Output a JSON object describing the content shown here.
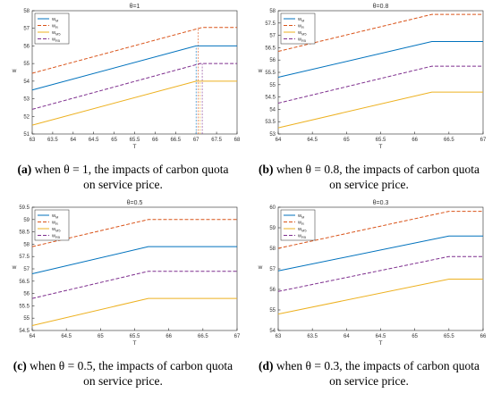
{
  "chart_data": [
    {
      "type": "line",
      "title": "θ=1",
      "xlabel": "T",
      "ylabel": "w",
      "xlim": [
        63,
        68
      ],
      "ylim": [
        51,
        58
      ],
      "xticks": [
        "63",
        "63.5",
        "64",
        "64.5",
        "65",
        "65.5",
        "66",
        "66.5",
        "67",
        "67.5",
        "68"
      ],
      "yticks": [
        "51",
        "52",
        "53",
        "54",
        "55",
        "56",
        "57",
        "58"
      ],
      "legend": [
        "w_M",
        "w_R",
        "w_M5",
        "w_R5"
      ],
      "legend_position": "top-left",
      "series": [
        {
          "name": "w_M",
          "x": [
            63,
            67,
            68
          ],
          "y": [
            53.5,
            56.0,
            56.0
          ]
        },
        {
          "name": "w_R",
          "x": [
            63,
            67.15,
            68
          ],
          "y": [
            54.45,
            57.05,
            57.05
          ]
        },
        {
          "name": "w_M5",
          "x": [
            63,
            67,
            68
          ],
          "y": [
            51.5,
            54.0,
            54.0
          ]
        },
        {
          "name": "w_R5",
          "x": [
            63,
            67.1,
            68
          ],
          "y": [
            52.4,
            55.0,
            55.0
          ]
        }
      ],
      "caption": {
        "tag": "(a)",
        "theta_text": "when θ = 1, the impacts of carbon quota",
        "line2": "on service price."
      }
    },
    {
      "type": "line",
      "title": "θ=0.8",
      "xlabel": "T",
      "ylabel": "w",
      "xlim": [
        64,
        67
      ],
      "ylim": [
        53,
        58
      ],
      "xticks": [
        "64",
        "64.5",
        "65",
        "65.5",
        "66",
        "66.5",
        "67"
      ],
      "yticks": [
        "53",
        "53.5",
        "54",
        "54.5",
        "55",
        "55.5",
        "56",
        "56.5",
        "57",
        "57.5",
        "58"
      ],
      "legend": [
        "w_M",
        "w_R",
        "w_M5",
        "w_R5"
      ],
      "legend_position": "top-left",
      "series": [
        {
          "name": "w_M",
          "x": [
            64,
            66.25,
            67
          ],
          "y": [
            55.3,
            56.75,
            56.75
          ]
        },
        {
          "name": "w_R",
          "x": [
            64,
            66.25,
            67
          ],
          "y": [
            56.35,
            57.85,
            57.85
          ]
        },
        {
          "name": "w_M5",
          "x": [
            64,
            66.25,
            67
          ],
          "y": [
            53.25,
            54.7,
            54.7
          ]
        },
        {
          "name": "w_R5",
          "x": [
            64,
            66.25,
            67
          ],
          "y": [
            54.25,
            55.75,
            55.75
          ]
        }
      ],
      "caption": {
        "tag": "(b)",
        "theta_text": "when θ = 0.8, the impacts of carbon quota",
        "line2": "on service price."
      }
    },
    {
      "type": "line",
      "title": "θ=0.5",
      "xlabel": "T",
      "ylabel": "w",
      "xlim": [
        64,
        67
      ],
      "ylim": [
        54.5,
        59.5
      ],
      "xticks": [
        "64",
        "64.5",
        "65",
        "65.5",
        "66",
        "66.5",
        "67"
      ],
      "yticks": [
        "54.5",
        "55",
        "55.5",
        "56",
        "56.5",
        "57",
        "57.5",
        "58",
        "58.5",
        "59",
        "59.5"
      ],
      "legend": [
        "w_M",
        "w_R",
        "w_M5",
        "w_R5"
      ],
      "legend_position": "top-left",
      "series": [
        {
          "name": "w_M",
          "x": [
            64,
            65.7,
            67
          ],
          "y": [
            56.8,
            57.9,
            57.9
          ]
        },
        {
          "name": "w_R",
          "x": [
            64,
            65.7,
            67
          ],
          "y": [
            57.9,
            59.0,
            59.0
          ]
        },
        {
          "name": "w_M5",
          "x": [
            64,
            65.7,
            67
          ],
          "y": [
            54.7,
            55.8,
            55.8
          ]
        },
        {
          "name": "w_R5",
          "x": [
            64,
            65.7,
            67
          ],
          "y": [
            55.8,
            56.9,
            56.9
          ]
        }
      ],
      "caption": {
        "tag": "(c)",
        "theta_text": "when θ = 0.5, the impacts of carbon quota",
        "line2": "on service price."
      }
    },
    {
      "type": "line",
      "title": "θ=0.3",
      "xlabel": "T",
      "ylabel": "w",
      "xlim": [
        63,
        66
      ],
      "ylim": [
        54,
        60
      ],
      "xticks": [
        "63",
        "63.5",
        "64",
        "64.5",
        "65",
        "65.5",
        "66"
      ],
      "yticks": [
        "54",
        "55",
        "56",
        "57",
        "58",
        "59",
        "60"
      ],
      "legend": [
        "w_M",
        "w_R",
        "w_M5",
        "w_R5"
      ],
      "legend_position": "top-left",
      "series": [
        {
          "name": "w_M",
          "x": [
            63,
            65.5,
            66
          ],
          "y": [
            56.9,
            58.6,
            58.6
          ]
        },
        {
          "name": "w_R",
          "x": [
            63,
            65.5,
            66
          ],
          "y": [
            58.0,
            59.8,
            59.8
          ]
        },
        {
          "name": "w_M5",
          "x": [
            63,
            65.5,
            66
          ],
          "y": [
            54.8,
            56.5,
            56.5
          ]
        },
        {
          "name": "w_R5",
          "x": [
            63,
            65.5,
            66
          ],
          "y": [
            55.9,
            57.6,
            57.6
          ]
        }
      ],
      "caption": {
        "tag": "(d)",
        "theta_text": "when θ = 0.3, the impacts of carbon quota",
        "line2": "on service price."
      }
    }
  ],
  "series_styles": [
    {
      "color": "#0072BD",
      "dash": ""
    },
    {
      "color": "#D95319",
      "dash": "4,2"
    },
    {
      "color": "#EDB120",
      "dash": ""
    },
    {
      "color": "#7E2F8E",
      "dash": "4,2"
    }
  ],
  "legend_subscripts": [
    "M",
    "R",
    "M5",
    "R5"
  ],
  "legend_base": "w",
  "panel_a_vertical_dashes": [
    67,
    67.05,
    67.1,
    67.15
  ]
}
